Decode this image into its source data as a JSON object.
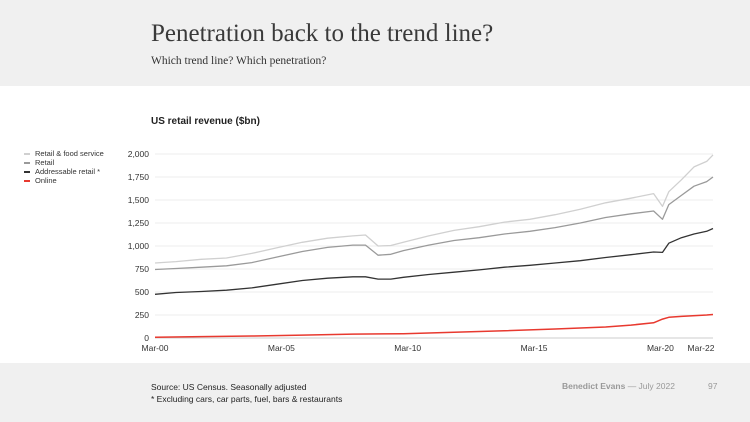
{
  "header": {
    "title": "Penetration back to the trend line?",
    "subtitle": "Which trend line? Which penetration?"
  },
  "footer": {
    "source": "Source: US Census. Seasonally adjusted",
    "note": "* Excluding cars, car parts, fuel, bars & restaurants",
    "author": "Benedict Evans",
    "date": "— July 2022",
    "page": "97"
  },
  "chart_data": {
    "type": "line",
    "title": "US retail revenue ($bn)",
    "x_tick_labels": [
      "Mar-00",
      "Mar-05",
      "Mar-10",
      "Mar-15",
      "Mar-20",
      "Mar-22"
    ],
    "x_tick_years": [
      2000.17,
      2005.17,
      2010.17,
      2015.17,
      2020.17,
      2022.17
    ],
    "y_tick_labels": [
      "0",
      "250",
      "500",
      "750",
      "1,000",
      "1,250",
      "1,500",
      "1,750",
      "2,000"
    ],
    "y_ticks": [
      0,
      250,
      500,
      750,
      1000,
      1250,
      1500,
      1750,
      2000
    ],
    "xlim": [
      2000.17,
      2022.25
    ],
    "ylim": [
      0,
      2000
    ],
    "grid": true,
    "legend_position": "left",
    "series": [
      {
        "name": "Retail & food service",
        "color": "#d0d0d0",
        "x": [
          2000.17,
          2001,
          2002,
          2003,
          2004,
          2005,
          2006,
          2007,
          2008,
          2008.5,
          2009,
          2009.5,
          2010,
          2011,
          2012,
          2013,
          2014,
          2015,
          2016,
          2017,
          2018,
          2019,
          2019.9,
          2020.25,
          2020.5,
          2021,
          2021.5,
          2022,
          2022.25
        ],
        "values": [
          815,
          830,
          855,
          870,
          920,
          980,
          1040,
          1085,
          1110,
          1120,
          1000,
          1005,
          1040,
          1110,
          1170,
          1210,
          1260,
          1290,
          1340,
          1400,
          1470,
          1520,
          1570,
          1430,
          1590,
          1720,
          1860,
          1920,
          1990
        ]
      },
      {
        "name": "Retail",
        "color": "#9a9a9a",
        "x": [
          2000.17,
          2001,
          2002,
          2003,
          2004,
          2005,
          2006,
          2007,
          2008,
          2008.5,
          2009,
          2009.5,
          2010,
          2011,
          2012,
          2013,
          2014,
          2015,
          2016,
          2017,
          2018,
          2019,
          2019.9,
          2020.25,
          2020.5,
          2021,
          2021.5,
          2022,
          2022.25
        ],
        "values": [
          745,
          755,
          770,
          785,
          820,
          880,
          940,
          985,
          1010,
          1010,
          900,
          910,
          950,
          1010,
          1060,
          1090,
          1130,
          1160,
          1200,
          1250,
          1310,
          1350,
          1380,
          1290,
          1450,
          1550,
          1650,
          1700,
          1750
        ]
      },
      {
        "name": "Addressable retail *",
        "color": "#333333",
        "x": [
          2000.17,
          2001,
          2002,
          2003,
          2004,
          2005,
          2006,
          2007,
          2008,
          2008.5,
          2009,
          2009.5,
          2010,
          2011,
          2012,
          2013,
          2014,
          2015,
          2016,
          2017,
          2018,
          2019,
          2019.9,
          2020.25,
          2020.5,
          2021,
          2021.5,
          2022,
          2022.25
        ],
        "values": [
          475,
          495,
          505,
          520,
          545,
          585,
          625,
          650,
          665,
          665,
          640,
          640,
          660,
          690,
          715,
          740,
          770,
          790,
          815,
          840,
          875,
          905,
          935,
          930,
          1030,
          1090,
          1130,
          1160,
          1190
        ]
      },
      {
        "name": "Online",
        "color": "#e8392f",
        "x": [
          2000.17,
          2002,
          2004,
          2006,
          2008,
          2010,
          2012,
          2014,
          2016,
          2018,
          2019,
          2019.9,
          2020.25,
          2020.5,
          2021,
          2022,
          2022.25
        ],
        "values": [
          8,
          15,
          22,
          32,
          42,
          47,
          62,
          78,
          98,
          120,
          140,
          165,
          205,
          225,
          235,
          250,
          255
        ]
      }
    ]
  }
}
